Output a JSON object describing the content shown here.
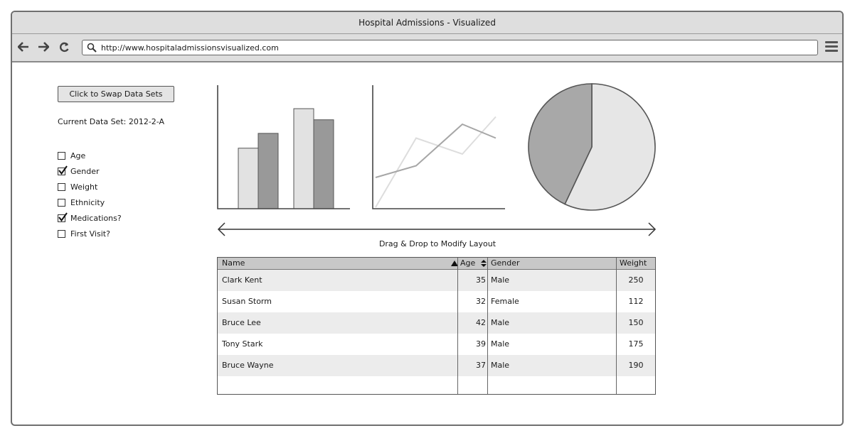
{
  "window": {
    "title": "Hospital Admissions - Visualized"
  },
  "browser": {
    "url": "http://www.hospitaladmissionsvisualized.com"
  },
  "sidebar": {
    "swap_button": "Click to Swap Data Sets",
    "current_dataset": "Current Data Set: 2012-2-A",
    "filters": [
      {
        "label": "Age",
        "checked": false
      },
      {
        "label": "Gender",
        "checked": true
      },
      {
        "label": "Weight",
        "checked": false
      },
      {
        "label": "Ethnicity",
        "checked": false
      },
      {
        "label": "Medications?",
        "checked": true
      },
      {
        "label": "First Visit?",
        "checked": false
      }
    ]
  },
  "drag_hint": "Drag & Drop to Modify Layout",
  "table": {
    "headers": {
      "name": "Name",
      "age": "Age",
      "gender": "Gender",
      "weight": "Weight"
    },
    "rows": [
      {
        "name": "Clark Kent",
        "age": "35",
        "gender": "Male",
        "weight": "250"
      },
      {
        "name": "Susan Storm",
        "age": "32",
        "gender": "Female",
        "weight": "112"
      },
      {
        "name": "Bruce Lee",
        "age": "42",
        "gender": "Male",
        "weight": "150"
      },
      {
        "name": "Tony Stark",
        "age": "39",
        "gender": "Male",
        "weight": "175"
      },
      {
        "name": "Bruce Wayne",
        "age": "37",
        "gender": "Male",
        "weight": "190"
      }
    ]
  },
  "chart_data": [
    {
      "type": "bar",
      "categories": [
        "",
        ""
      ],
      "series": [
        {
          "color": "#e2e2e2",
          "values": [
            49,
            81
          ]
        },
        {
          "color": "#999999",
          "values": [
            61,
            72
          ]
        }
      ],
      "ylim": [
        0,
        100
      ]
    },
    {
      "type": "line",
      "x": [
        0,
        1,
        2,
        3
      ],
      "series": [
        {
          "color": "#dddddd",
          "values": [
            0,
            65,
            50,
            85
          ]
        },
        {
          "color": "#a6a6a6",
          "values": [
            28,
            39,
            78,
            65
          ]
        }
      ],
      "ylim": [
        0,
        100
      ]
    },
    {
      "type": "pie",
      "slices": [
        {
          "value": 57,
          "color": "#e6e6e6"
        },
        {
          "value": 43,
          "color": "#a8a8a8"
        }
      ]
    }
  ]
}
